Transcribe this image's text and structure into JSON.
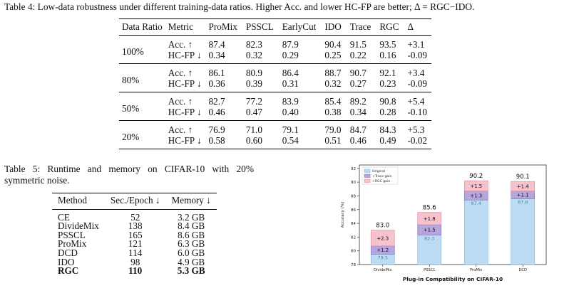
{
  "table4": {
    "caption_prefix": "Table 4: Low-data robustness under different training-data ratios. Higher Acc. and lower HC-FP are better; Δ = RGC−IDO.",
    "headers": [
      "Data Ratio",
      "Metric",
      "ProMix",
      "PSSCL",
      "EarlyCut",
      "IDO",
      "Trace",
      "RGC",
      "Δ"
    ],
    "groups": [
      {
        "ratio": "100%",
        "rows": [
          {
            "metric": "Acc. ↑",
            "vals": [
              "87.4",
              "82.3",
              "87.9",
              "90.4",
              "91.5",
              "93.5",
              "+3.1"
            ]
          },
          {
            "metric": "HC-FP ↓",
            "vals": [
              "0.34",
              "0.32",
              "0.29",
              "0.25",
              "0.22",
              "0.16",
              "-0.09"
            ]
          }
        ]
      },
      {
        "ratio": "80%",
        "rows": [
          {
            "metric": "Acc. ↑",
            "vals": [
              "86.1",
              "80.9",
              "86.4",
              "88.7",
              "90.7",
              "92.1",
              "+3.4"
            ]
          },
          {
            "metric": "HC-FP ↓",
            "vals": [
              "0.36",
              "0.39",
              "0.31",
              "0.32",
              "0.27",
              "0.23",
              "-0.09"
            ]
          }
        ]
      },
      {
        "ratio": "50%",
        "rows": [
          {
            "metric": "Acc. ↑",
            "vals": [
              "82.7",
              "77.2",
              "83.9",
              "85.4",
              "89.2",
              "90.8",
              "+5.4"
            ]
          },
          {
            "metric": "HC-FP ↓",
            "vals": [
              "0.46",
              "0.47",
              "0.40",
              "0.38",
              "0.34",
              "0.28",
              "-0.10"
            ]
          }
        ]
      },
      {
        "ratio": "20%",
        "rows": [
          {
            "metric": "Acc. ↑",
            "vals": [
              "76.9",
              "71.0",
              "79.1",
              "79.0",
              "84.7",
              "84.3",
              "+5.3"
            ]
          },
          {
            "metric": "HC-FP ↓",
            "vals": [
              "0.58",
              "0.60",
              "0.54",
              "0.51",
              "0.46",
              "0.49",
              "-0.02"
            ]
          }
        ]
      }
    ]
  },
  "table5": {
    "caption": "Table 5: Runtime and memory on CIFAR-10 with 20% symmetric noise.",
    "headers": [
      "Method",
      "Sec./Epoch ↓",
      "Memory ↓"
    ],
    "rows": [
      [
        "CE",
        "52",
        "3.2 GB"
      ],
      [
        "DivideMix",
        "138",
        "8.4 GB"
      ],
      [
        "PSSCL",
        "165",
        "8.6 GB"
      ],
      [
        "ProMix",
        "121",
        "6.3 GB"
      ],
      [
        "DCD",
        "114",
        "6.0 GB"
      ],
      [
        "IDO",
        "98",
        "4.9 GB"
      ],
      [
        "RGC",
        "110",
        "5.3 GB"
      ]
    ]
  },
  "chart_data": {
    "type": "bar",
    "title": "Plug-in Compatibility on CIFAR-10",
    "ylabel": "Accuracy (%)",
    "ylim": [
      78,
      92.5
    ],
    "yticks": [
      78,
      80,
      82,
      84,
      86,
      88,
      90,
      92
    ],
    "categories": [
      "DivideMix",
      "PSSCL",
      "ProMix",
      "DCD"
    ],
    "series": [
      {
        "name": "Original",
        "values": [
          79.5,
          82.3,
          87.4,
          87.6
        ],
        "labels": [
          "79.5",
          "82.3",
          "87.4",
          "87.6"
        ],
        "color": "#bcdcf3",
        "edge": "#7fb0d8"
      },
      {
        "name": "+Trace gain",
        "values": [
          1.2,
          1.5,
          1.3,
          1.1
        ],
        "labels": [
          "+1.2",
          "+1.5",
          "+1.3",
          "+1.1"
        ],
        "color": "#b6a6de",
        "edge": "#7e6ab8"
      },
      {
        "name": "+RGC gain",
        "values": [
          2.3,
          1.8,
          1.5,
          1.4
        ],
        "labels": [
          "+2.3",
          "+1.8",
          "+1.5",
          "+1.4"
        ],
        "color": "#f5c2cd",
        "edge": "#d9899b"
      }
    ],
    "totals": [
      "83.0",
      "85.6",
      "90.2",
      "90.1"
    ],
    "legend": "top-left",
    "grid": false
  }
}
